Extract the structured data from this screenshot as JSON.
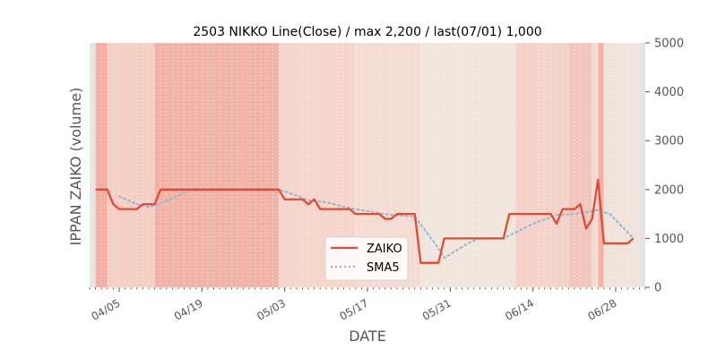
{
  "chart_data": {
    "type": "line",
    "title": "2503 NIKKO Line(Close) / max 2,200 / last(07/01) 1,000",
    "xlabel": "DATE",
    "ylabel": "IPPAN ZAIKO (volume)",
    "y_axis_side": "right",
    "ylim": [
      0,
      5000
    ],
    "yticks": [
      0,
      1000,
      2000,
      3000,
      4000,
      5000
    ],
    "ytick_labels": [
      "0",
      "1000",
      "2000",
      "3000",
      "4000",
      "5000"
    ],
    "x_start": "2021-03-31",
    "x_end": "2021-07-03",
    "xticks": [
      {
        "date": "2021-04-05",
        "label": "04/05"
      },
      {
        "date": "2021-04-19",
        "label": "04/19"
      },
      {
        "date": "2021-05-03",
        "label": "05/03"
      },
      {
        "date": "2021-05-17",
        "label": "05/17"
      },
      {
        "date": "2021-05-31",
        "label": "05/31"
      },
      {
        "date": "2021-06-14",
        "label": "06/14"
      },
      {
        "date": "2021-06-28",
        "label": "06/28"
      }
    ],
    "legend": {
      "position": "bottom-center",
      "entries": [
        "ZAIKO",
        "SMA5"
      ]
    },
    "series": [
      {
        "name": "ZAIKO",
        "color": "#e24a33",
        "style": "solid",
        "points": [
          [
            "2021-04-01",
            2000
          ],
          [
            "2021-04-02",
            2000
          ],
          [
            "2021-04-03",
            2000
          ],
          [
            "2021-04-04",
            1700
          ],
          [
            "2021-04-05",
            1600
          ],
          [
            "2021-04-06",
            1600
          ],
          [
            "2021-04-07",
            1600
          ],
          [
            "2021-04-08",
            1600
          ],
          [
            "2021-04-09",
            1700
          ],
          [
            "2021-04-10",
            1700
          ],
          [
            "2021-04-11",
            1700
          ],
          [
            "2021-04-12",
            2000
          ],
          [
            "2021-04-13",
            2000
          ],
          [
            "2021-05-02",
            2000
          ],
          [
            "2021-05-03",
            1800
          ],
          [
            "2021-05-06",
            1800
          ],
          [
            "2021-05-07",
            1700
          ],
          [
            "2021-05-08",
            1800
          ],
          [
            "2021-05-09",
            1600
          ],
          [
            "2021-05-14",
            1600
          ],
          [
            "2021-05-15",
            1500
          ],
          [
            "2021-05-19",
            1500
          ],
          [
            "2021-05-20",
            1400
          ],
          [
            "2021-05-21",
            1400
          ],
          [
            "2021-05-22",
            1500
          ],
          [
            "2021-05-25",
            1500
          ],
          [
            "2021-05-26",
            500
          ],
          [
            "2021-05-29",
            500
          ],
          [
            "2021-05-30",
            1000
          ],
          [
            "2021-06-09",
            1000
          ],
          [
            "2021-06-10",
            1500
          ],
          [
            "2021-06-17",
            1500
          ],
          [
            "2021-06-18",
            1300
          ],
          [
            "2021-06-19",
            1600
          ],
          [
            "2021-06-21",
            1600
          ],
          [
            "2021-06-22",
            1700
          ],
          [
            "2021-06-23",
            1200
          ],
          [
            "2021-06-24",
            1400
          ],
          [
            "2021-06-25",
            2200
          ],
          [
            "2021-06-26",
            900
          ],
          [
            "2021-06-29",
            900
          ],
          [
            "2021-06-30",
            900
          ],
          [
            "2021-07-01",
            1000
          ]
        ]
      },
      {
        "name": "SMA5",
        "color": "#8eb8d6",
        "style": "dotted",
        "points": [
          [
            "2021-04-05",
            1860
          ],
          [
            "2021-04-08",
            1700
          ],
          [
            "2021-04-10",
            1640
          ],
          [
            "2021-04-13",
            1760
          ],
          [
            "2021-04-16",
            1940
          ],
          [
            "2021-04-17",
            2000
          ],
          [
            "2021-05-02",
            2000
          ],
          [
            "2021-05-05",
            1880
          ],
          [
            "2021-05-07",
            1780
          ],
          [
            "2021-05-10",
            1740
          ],
          [
            "2021-05-14",
            1620
          ],
          [
            "2021-05-17",
            1560
          ],
          [
            "2021-05-20",
            1500
          ],
          [
            "2021-05-23",
            1460
          ],
          [
            "2021-05-25",
            1450
          ],
          [
            "2021-05-29",
            800
          ],
          [
            "2021-05-30",
            600
          ],
          [
            "2021-06-03",
            900
          ],
          [
            "2021-06-05",
            1000
          ],
          [
            "2021-06-09",
            1000
          ],
          [
            "2021-06-14",
            1300
          ],
          [
            "2021-06-18",
            1480
          ],
          [
            "2021-06-21",
            1500
          ],
          [
            "2021-06-25",
            1580
          ],
          [
            "2021-06-27",
            1500
          ],
          [
            "2021-07-01",
            1000
          ]
        ]
      }
    ],
    "background_bands": [
      {
        "from": "2021-03-31",
        "to": "2021-04-01",
        "color": "#e5e5e5"
      },
      {
        "from": "2021-04-01",
        "to": "2021-04-03",
        "color": "#f4b0a3"
      },
      {
        "from": "2021-04-03",
        "to": "2021-04-11",
        "color": "#f5cfc4"
      },
      {
        "from": "2021-04-11",
        "to": "2021-05-02",
        "color": "#f2b3a8"
      },
      {
        "from": "2021-05-02",
        "to": "2021-05-15",
        "color": "#f6d5cb"
      },
      {
        "from": "2021-05-15",
        "to": "2021-05-26",
        "color": "#f5dcd2"
      },
      {
        "from": "2021-05-26",
        "to": "2021-06-11",
        "color": "#f1e6dc"
      },
      {
        "from": "2021-06-11",
        "to": "2021-06-20",
        "color": "#f5d3c9"
      },
      {
        "from": "2021-06-20",
        "to": "2021-06-24",
        "color": "#f3c6bc"
      },
      {
        "from": "2021-06-24",
        "to": "2021-06-25",
        "color": "#f6dcd4"
      },
      {
        "from": "2021-06-25",
        "to": "2021-06-26",
        "color": "#f4b2a4"
      },
      {
        "from": "2021-06-26",
        "to": "2021-07-02",
        "color": "#f2e4da"
      },
      {
        "from": "2021-07-02",
        "to": "2021-07-03",
        "color": "#e5e5e5"
      }
    ]
  }
}
